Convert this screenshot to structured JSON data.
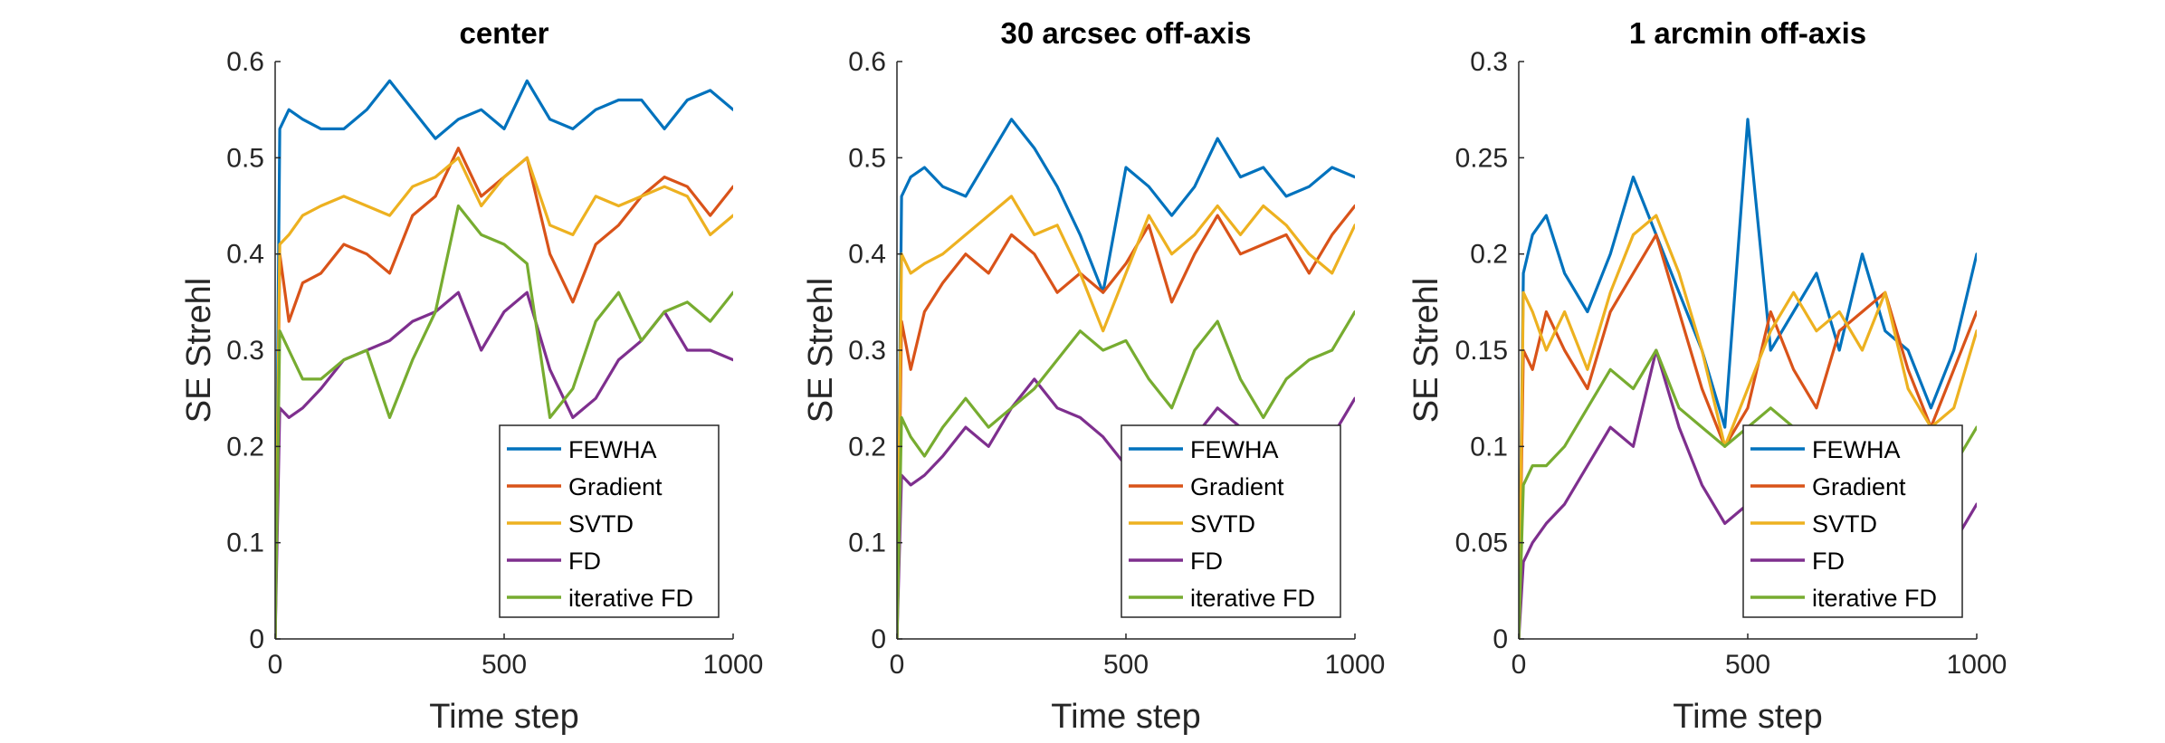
{
  "colors": {
    "FEWHA": "#0072BD",
    "Gradient": "#D95319",
    "SVTD": "#EDB120",
    "FD": "#7E2F8E",
    "iterative FD": "#77AC30"
  },
  "chart_data": [
    {
      "type": "line",
      "title": "center",
      "xlabel": "Time step",
      "ylabel": "SE Strehl",
      "xlim": [
        0,
        1000
      ],
      "ylim": [
        0,
        0.6
      ],
      "xticks": [
        0,
        500,
        1000
      ],
      "xtick_labels": [
        "0",
        "500",
        "1000"
      ],
      "yticks": [
        0,
        0.1,
        0.2,
        0.3,
        0.4,
        0.5,
        0.6
      ],
      "ytick_labels": [
        "0",
        "0.1",
        "0.2",
        "0.3",
        "0.4",
        "0.5",
        "0.6"
      ],
      "legend_position": "bottom-right",
      "x": [
        0,
        10,
        30,
        60,
        100,
        150,
        200,
        250,
        300,
        350,
        400,
        450,
        500,
        550,
        600,
        650,
        700,
        750,
        800,
        850,
        900,
        950,
        1000
      ],
      "series": [
        {
          "name": "FEWHA",
          "values": [
            0.0,
            0.53,
            0.55,
            0.54,
            0.53,
            0.53,
            0.55,
            0.58,
            0.55,
            0.52,
            0.54,
            0.55,
            0.53,
            0.58,
            0.54,
            0.53,
            0.55,
            0.56,
            0.56,
            0.53,
            0.56,
            0.57,
            0.55
          ]
        },
        {
          "name": "Gradient",
          "values": [
            0.0,
            0.4,
            0.33,
            0.37,
            0.38,
            0.41,
            0.4,
            0.38,
            0.44,
            0.46,
            0.51,
            0.46,
            0.48,
            0.5,
            0.4,
            0.35,
            0.41,
            0.43,
            0.46,
            0.48,
            0.47,
            0.44,
            0.47
          ]
        },
        {
          "name": "SVTD",
          "values": [
            0.0,
            0.41,
            0.42,
            0.44,
            0.45,
            0.46,
            0.45,
            0.44,
            0.47,
            0.48,
            0.5,
            0.45,
            0.48,
            0.5,
            0.43,
            0.42,
            0.46,
            0.45,
            0.46,
            0.47,
            0.46,
            0.42,
            0.44
          ]
        },
        {
          "name": "FD",
          "values": [
            0.0,
            0.24,
            0.23,
            0.24,
            0.26,
            0.29,
            0.3,
            0.31,
            0.33,
            0.34,
            0.36,
            0.3,
            0.34,
            0.36,
            0.28,
            0.23,
            0.25,
            0.29,
            0.31,
            0.34,
            0.3,
            0.3,
            0.29
          ]
        },
        {
          "name": "iterative FD",
          "values": [
            0.0,
            0.32,
            0.3,
            0.27,
            0.27,
            0.29,
            0.3,
            0.23,
            0.29,
            0.34,
            0.45,
            0.42,
            0.41,
            0.39,
            0.23,
            0.26,
            0.33,
            0.36,
            0.31,
            0.34,
            0.35,
            0.33,
            0.36
          ]
        }
      ]
    },
    {
      "type": "line",
      "title": "30 arcsec off-axis",
      "xlabel": "Time step",
      "ylabel": "SE Strehl",
      "xlim": [
        0,
        1000
      ],
      "ylim": [
        0,
        0.6
      ],
      "xticks": [
        0,
        500,
        1000
      ],
      "xtick_labels": [
        "0",
        "500",
        "1000"
      ],
      "yticks": [
        0,
        0.1,
        0.2,
        0.3,
        0.4,
        0.5,
        0.6
      ],
      "ytick_labels": [
        "0",
        "0.1",
        "0.2",
        "0.3",
        "0.4",
        "0.5",
        "0.6"
      ],
      "legend_position": "bottom-right",
      "x": [
        0,
        10,
        30,
        60,
        100,
        150,
        200,
        250,
        300,
        350,
        400,
        450,
        500,
        550,
        600,
        650,
        700,
        750,
        800,
        850,
        900,
        950,
        1000
      ],
      "series": [
        {
          "name": "FEWHA",
          "values": [
            0.0,
            0.46,
            0.48,
            0.49,
            0.47,
            0.46,
            0.5,
            0.54,
            0.51,
            0.47,
            0.42,
            0.36,
            0.49,
            0.47,
            0.44,
            0.47,
            0.52,
            0.48,
            0.49,
            0.46,
            0.47,
            0.49,
            0.48
          ]
        },
        {
          "name": "Gradient",
          "values": [
            0.0,
            0.33,
            0.28,
            0.34,
            0.37,
            0.4,
            0.38,
            0.42,
            0.4,
            0.36,
            0.38,
            0.36,
            0.39,
            0.43,
            0.35,
            0.4,
            0.44,
            0.4,
            0.41,
            0.42,
            0.38,
            0.42,
            0.45
          ]
        },
        {
          "name": "SVTD",
          "values": [
            0.0,
            0.4,
            0.38,
            0.39,
            0.4,
            0.42,
            0.44,
            0.46,
            0.42,
            0.43,
            0.38,
            0.32,
            0.38,
            0.44,
            0.4,
            0.42,
            0.45,
            0.42,
            0.45,
            0.43,
            0.4,
            0.38,
            0.43
          ]
        },
        {
          "name": "FD",
          "values": [
            0.0,
            0.17,
            0.16,
            0.17,
            0.19,
            0.22,
            0.2,
            0.24,
            0.27,
            0.24,
            0.23,
            0.21,
            0.18,
            0.21,
            0.2,
            0.21,
            0.24,
            0.22,
            0.22,
            0.19,
            0.2,
            0.21,
            0.25
          ]
        },
        {
          "name": "iterative FD",
          "values": [
            0.0,
            0.23,
            0.21,
            0.19,
            0.22,
            0.25,
            0.22,
            0.24,
            0.26,
            0.29,
            0.32,
            0.3,
            0.31,
            0.27,
            0.24,
            0.3,
            0.33,
            0.27,
            0.23,
            0.27,
            0.29,
            0.3,
            0.34
          ]
        }
      ]
    },
    {
      "type": "line",
      "title": "1 arcmin off-axis",
      "xlabel": "Time step",
      "ylabel": "SE Strehl",
      "xlim": [
        0,
        1000
      ],
      "ylim": [
        0,
        0.3
      ],
      "xticks": [
        0,
        500,
        1000
      ],
      "xtick_labels": [
        "0",
        "500",
        "1000"
      ],
      "yticks": [
        0,
        0.05,
        0.1,
        0.15,
        0.2,
        0.25,
        0.3
      ],
      "ytick_labels": [
        "0",
        "0.05",
        "0.1",
        "0.15",
        "0.2",
        "0.25",
        "0.3"
      ],
      "legend_position": "bottom-right",
      "x": [
        0,
        10,
        30,
        60,
        100,
        150,
        200,
        250,
        300,
        350,
        400,
        450,
        500,
        550,
        600,
        650,
        700,
        750,
        800,
        850,
        900,
        950,
        1000
      ],
      "series": [
        {
          "name": "FEWHA",
          "values": [
            0.0,
            0.19,
            0.21,
            0.22,
            0.19,
            0.17,
            0.2,
            0.24,
            0.21,
            0.18,
            0.15,
            0.11,
            0.27,
            0.15,
            0.17,
            0.19,
            0.15,
            0.2,
            0.16,
            0.15,
            0.12,
            0.15,
            0.2
          ]
        },
        {
          "name": "Gradient",
          "values": [
            0.0,
            0.15,
            0.14,
            0.17,
            0.15,
            0.13,
            0.17,
            0.19,
            0.21,
            0.17,
            0.13,
            0.1,
            0.12,
            0.17,
            0.14,
            0.12,
            0.16,
            0.17,
            0.18,
            0.14,
            0.11,
            0.14,
            0.17
          ]
        },
        {
          "name": "SVTD",
          "values": [
            0.0,
            0.18,
            0.17,
            0.15,
            0.17,
            0.14,
            0.18,
            0.21,
            0.22,
            0.19,
            0.15,
            0.1,
            0.13,
            0.16,
            0.18,
            0.16,
            0.17,
            0.15,
            0.18,
            0.13,
            0.11,
            0.12,
            0.16
          ]
        },
        {
          "name": "FD",
          "values": [
            0.0,
            0.04,
            0.05,
            0.06,
            0.07,
            0.09,
            0.11,
            0.1,
            0.15,
            0.11,
            0.08,
            0.06,
            0.07,
            0.09,
            0.08,
            0.07,
            0.09,
            0.1,
            0.07,
            0.06,
            0.08,
            0.05,
            0.07
          ]
        },
        {
          "name": "iterative FD",
          "values": [
            0.0,
            0.08,
            0.09,
            0.09,
            0.1,
            0.12,
            0.14,
            0.13,
            0.15,
            0.12,
            0.11,
            0.1,
            0.11,
            0.12,
            0.11,
            0.1,
            0.11,
            0.11,
            0.11,
            0.1,
            0.1,
            0.09,
            0.11
          ]
        }
      ]
    }
  ]
}
